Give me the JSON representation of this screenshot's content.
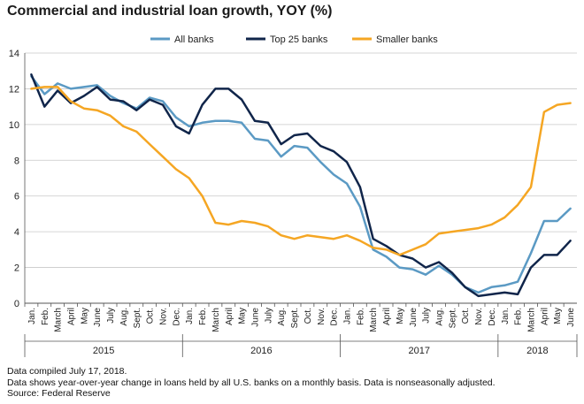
{
  "title": "Commercial and industrial loan growth, YOY (%)",
  "footer": {
    "line1": "Data compiled July 17, 2018.",
    "line2": "Data shows year-over-year change in loans held by all U.S. banks on a monthly basis. Data is nonseasonally adjusted.",
    "line3": "Source: Federal Reserve"
  },
  "colors": {
    "all_banks": "#5b9ac4",
    "top25": "#10254a",
    "smaller": "#f5a623",
    "grid": "#c8c8c8",
    "axis": "#555555"
  },
  "chart_data": {
    "type": "line",
    "ylim": [
      0,
      14
    ],
    "yticks": [
      0,
      2,
      4,
      6,
      8,
      10,
      12,
      14
    ],
    "grid": "horizontal",
    "legend": "top",
    "categories": [
      "Jan.",
      "Feb.",
      "March",
      "April",
      "May",
      "June",
      "July",
      "Aug.",
      "Sept.",
      "Oct.",
      "Nov.",
      "Dec.",
      "Jan.",
      "Feb.",
      "March",
      "April",
      "May",
      "June",
      "July",
      "Aug.",
      "Sept.",
      "Oct.",
      "Nov.",
      "Dec.",
      "Jan.",
      "Feb.",
      "March",
      "April",
      "May",
      "June",
      "July",
      "Aug.",
      "Sept.",
      "Oct.",
      "Nov.",
      "Dec.",
      "Jan.",
      "Feb.",
      "March",
      "April",
      "May",
      "June"
    ],
    "years": [
      {
        "label": "2015",
        "start": 0,
        "end": 11
      },
      {
        "label": "2016",
        "start": 12,
        "end": 23
      },
      {
        "label": "2017",
        "start": 24,
        "end": 35
      },
      {
        "label": "2018",
        "start": 36,
        "end": 41
      }
    ],
    "series": [
      {
        "name": "All banks",
        "color": "#5b9ac4",
        "values": [
          12.7,
          11.7,
          12.3,
          12.0,
          12.1,
          12.2,
          11.6,
          11.2,
          10.9,
          11.5,
          11.3,
          10.4,
          9.9,
          10.1,
          10.2,
          10.2,
          10.1,
          9.2,
          9.1,
          8.2,
          8.8,
          8.7,
          7.9,
          7.2,
          6.7,
          5.4,
          3.0,
          2.6,
          2.0,
          1.9,
          1.6,
          2.1,
          1.6,
          0.9,
          0.6,
          0.9,
          1.0,
          1.2,
          2.8,
          4.6,
          4.6,
          5.3
        ]
      },
      {
        "name": "Top 25 banks",
        "color": "#10254a",
        "values": [
          12.8,
          11.0,
          11.9,
          11.2,
          11.6,
          12.1,
          11.4,
          11.3,
          10.8,
          11.4,
          11.1,
          9.9,
          9.5,
          11.1,
          12.0,
          12.0,
          11.4,
          10.2,
          10.1,
          8.9,
          9.4,
          9.5,
          8.8,
          8.5,
          7.9,
          6.5,
          3.6,
          3.2,
          2.7,
          2.5,
          2.0,
          2.3,
          1.7,
          0.9,
          0.4,
          0.5,
          0.6,
          0.5,
          2.0,
          2.7,
          2.7,
          3.5
        ]
      },
      {
        "name": "Smaller banks",
        "color": "#f5a623",
        "values": [
          12.0,
          12.1,
          12.1,
          11.3,
          10.9,
          10.8,
          10.5,
          9.9,
          9.6,
          8.9,
          8.2,
          7.5,
          7.0,
          6.0,
          4.5,
          4.4,
          4.6,
          4.5,
          4.3,
          3.8,
          3.6,
          3.8,
          3.7,
          3.6,
          3.8,
          3.5,
          3.1,
          3.0,
          2.7,
          3.0,
          3.3,
          3.9,
          4.0,
          4.1,
          4.2,
          4.4,
          4.8,
          5.5,
          6.5,
          10.7,
          11.1,
          11.2
        ]
      }
    ]
  }
}
